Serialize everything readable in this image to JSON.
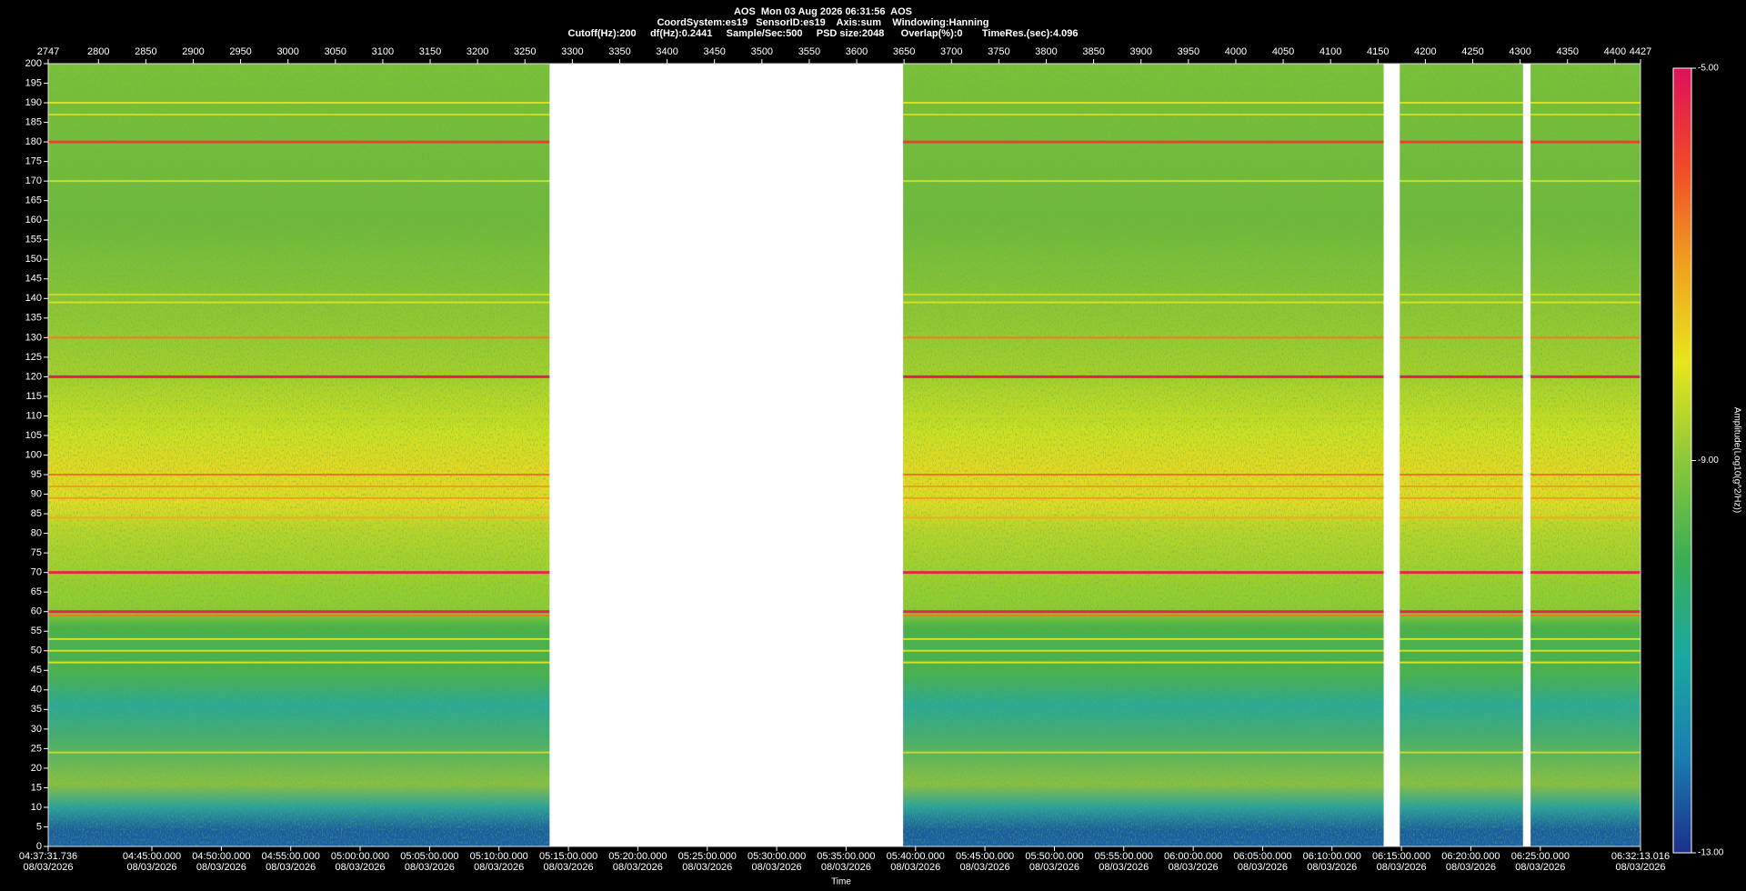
{
  "chart_data": {
    "type": "spectrogram",
    "title": "AOS  Mon 03 Aug 2026 06:31:56  AOS",
    "subtitles": [
      "CoordSystem:es19   SensorID:es19    Axis:sum    Windowing:Hanning",
      "Cutoff(Hz):200     df(Hz):0.2441     Sample/Sec:500     PSD size:2048      Overlap(%):0       TimeRes.(sec):4.096"
    ],
    "xlabel": "Time",
    "colorbar_label": "Amplitude(Log10(g^2/Hz))",
    "xlim": [
      2747,
      4427
    ],
    "ylim": [
      0,
      200
    ],
    "xticks_top": [
      2747,
      2800,
      2850,
      2900,
      2950,
      3000,
      3050,
      3100,
      3150,
      3200,
      3250,
      3300,
      3350,
      3400,
      3450,
      3500,
      3550,
      3600,
      3650,
      3700,
      3750,
      3800,
      3850,
      3900,
      3950,
      4000,
      4050,
      4100,
      4150,
      4200,
      4250,
      4300,
      4350,
      4400,
      4427
    ],
    "xticks": [
      {
        "value": 2747,
        "label": "04:37:31.736\n08/03/2026"
      },
      {
        "value": 2856.4,
        "label": "04:45:00.000\n08/03/2026"
      },
      {
        "value": 2929.7,
        "label": "04:50:00.000\n08/03/2026"
      },
      {
        "value": 3002.9,
        "label": "04:55:00.000\n08/03/2026"
      },
      {
        "value": 3076.1,
        "label": "05:00:00.000\n08/03/2026"
      },
      {
        "value": 3149.4,
        "label": "05:05:00.000\n08/03/2026"
      },
      {
        "value": 3222.6,
        "label": "05:10:00.000\n08/03/2026"
      },
      {
        "value": 3295.9,
        "label": "05:15:00.000\n08/03/2026"
      },
      {
        "value": 3369.1,
        "label": "05:20:00.000\n08/03/2026"
      },
      {
        "value": 3442.4,
        "label": "05:25:00.000\n08/03/2026"
      },
      {
        "value": 3515.6,
        "label": "05:30:00.000\n08/03/2026"
      },
      {
        "value": 3588.8,
        "label": "05:35:00.000\n08/03/2026"
      },
      {
        "value": 3662.1,
        "label": "05:40:00.000\n08/03/2026"
      },
      {
        "value": 3735.3,
        "label": "05:45:00.000\n08/03/2026"
      },
      {
        "value": 3808.6,
        "label": "05:50:00.000\n08/03/2026"
      },
      {
        "value": 3881.8,
        "label": "05:55:00.000\n08/03/2026"
      },
      {
        "value": 3955.1,
        "label": "06:00:00.000\n08/03/2026"
      },
      {
        "value": 4028.3,
        "label": "06:05:00.000\n08/03/2026"
      },
      {
        "value": 4101.5,
        "label": "06:10:00.000\n08/03/2026"
      },
      {
        "value": 4174.8,
        "label": "06:15:00.000\n08/03/2026"
      },
      {
        "value": 4248.0,
        "label": "06:20:00.000\n08/03/2026"
      },
      {
        "value": 4321.3,
        "label": "06:25:00.000\n08/03/2026"
      },
      {
        "value": 4427,
        "label": "06:32:13.016\n08/03/2026"
      }
    ],
    "yticks": [
      0,
      5,
      10,
      15,
      20,
      25,
      30,
      35,
      40,
      45,
      50,
      55,
      60,
      65,
      70,
      75,
      80,
      85,
      90,
      95,
      100,
      105,
      110,
      115,
      120,
      125,
      130,
      135,
      140,
      145,
      150,
      155,
      160,
      165,
      170,
      175,
      180,
      185,
      190,
      195,
      200
    ],
    "clim": [
      -13,
      -5
    ],
    "cticks": [
      {
        "value": -5,
        "label": "-5.00"
      },
      {
        "value": -9,
        "label": "-9.00"
      },
      {
        "value": -13,
        "label": "-13.00"
      }
    ],
    "colormap": [
      "#1c2f8c",
      "#1a7fb0",
      "#19a8a0",
      "#3aae55",
      "#8cc83a",
      "#e8e61c",
      "#f0a020",
      "#f04a28",
      "#e0105a"
    ],
    "gaps": [
      [
        3276,
        3649
      ],
      [
        4156,
        4173
      ],
      [
        4303,
        4311
      ]
    ],
    "tones": [
      {
        "freq": 190,
        "level": -8.2
      },
      {
        "freq": 187,
        "level": -8.4
      },
      {
        "freq": 180,
        "level": -5.8
      },
      {
        "freq": 170,
        "level": -8.3
      },
      {
        "freq": 141,
        "level": -8.4
      },
      {
        "freq": 139,
        "level": -8.2
      },
      {
        "freq": 130,
        "level": -6.6
      },
      {
        "freq": 120,
        "level": -5.3
      },
      {
        "freq": 110,
        "level": -8.4
      },
      {
        "freq": 95,
        "level": -6.5
      },
      {
        "freq": 92,
        "level": -7
      },
      {
        "freq": 89,
        "level": -7
      },
      {
        "freq": 84,
        "level": -7.2
      },
      {
        "freq": 70,
        "level": -5.4
      },
      {
        "freq": 60,
        "level": -5.4
      },
      {
        "freq": 59,
        "level": -6.5
      },
      {
        "freq": 53,
        "level": -8.2
      },
      {
        "freq": 50,
        "level": -8.3
      },
      {
        "freq": 47,
        "level": -8.2
      },
      {
        "freq": 24,
        "level": -8.4
      }
    ]
  }
}
